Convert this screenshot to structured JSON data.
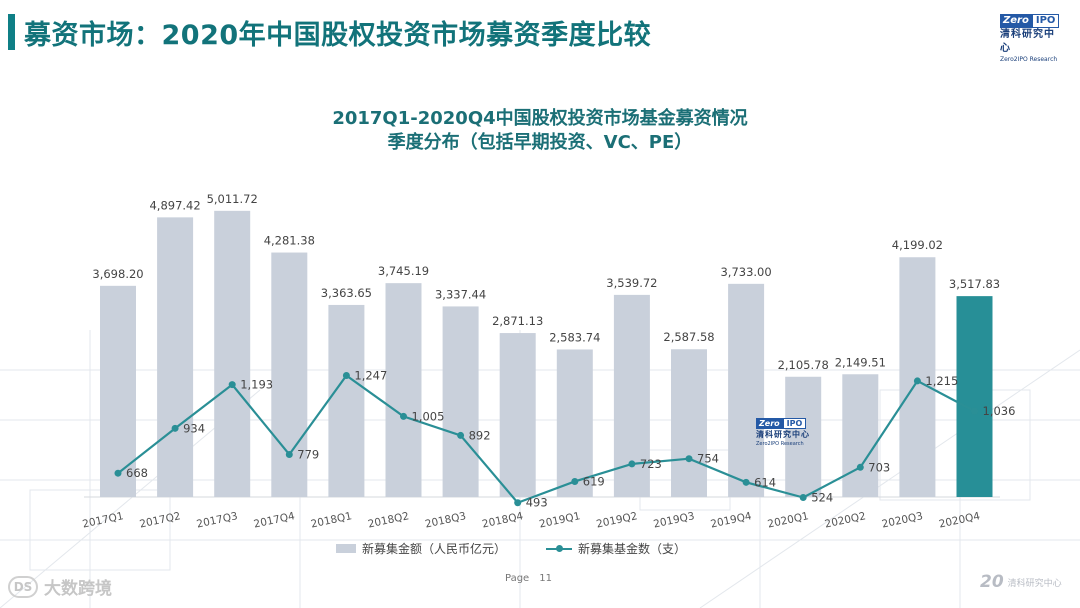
{
  "page": {
    "title": "募资市场：2020年中国股权投资市场募资季度比较",
    "number_label": "Page",
    "number": "11"
  },
  "logo": {
    "badge_left": "Zero",
    "badge_right": "IPO",
    "name_cn": "清科研究中心",
    "name_en": "Zero2IPO Research"
  },
  "footer": {
    "brand": "大数跨境",
    "brand_mark": "DS",
    "logo_num": "20",
    "logo_text": "清科研究中心"
  },
  "colors": {
    "bar": "#c9d0db",
    "bar_highlight": "#278f97",
    "line": "#2a8f96",
    "title": "#12737a"
  },
  "chart_data": {
    "type": "bar",
    "title_line1": "2017Q1-2020Q4中国股权投资市场基金募资情况",
    "title_line2": "季度分布（包括早期投资、VC、PE）",
    "categories": [
      "2017Q1",
      "2017Q2",
      "2017Q3",
      "2017Q4",
      "2018Q1",
      "2018Q2",
      "2018Q3",
      "2018Q4",
      "2019Q1",
      "2019Q2",
      "2019Q3",
      "2019Q4",
      "2020Q1",
      "2020Q2",
      "2020Q3",
      "2020Q4"
    ],
    "series": [
      {
        "name": "新募集金额（人民币亿元）",
        "type": "bar",
        "values": [
          3698.2,
          4897.42,
          5011.72,
          4281.38,
          3363.65,
          3745.19,
          3337.44,
          2871.13,
          2583.74,
          3539.72,
          2587.58,
          3733.0,
          2105.78,
          2149.51,
          4199.02,
          3517.83
        ],
        "labels": [
          "3,698.20",
          "4,897.42",
          "5,011.72",
          "4,281.38",
          "3,363.65",
          "3,745.19",
          "3,337.44",
          "2,871.13",
          "2,583.74",
          "3,539.72",
          "2,587.58",
          "3,733.00",
          "2,105.78",
          "2,149.51",
          "4,199.02",
          "3,517.83"
        ]
      },
      {
        "name": "新募集基金数（支）",
        "type": "line",
        "values": [
          668,
          934,
          1193,
          779,
          1247,
          1005,
          892,
          493,
          619,
          723,
          754,
          614,
          524,
          703,
          1215,
          1036
        ],
        "labels": [
          "668",
          "934",
          "1,193",
          "779",
          "1,247",
          "1,005",
          "892",
          "493",
          "619",
          "723",
          "754",
          "614",
          "524",
          "703",
          "1,215",
          "1,036"
        ]
      }
    ],
    "highlight_index": 15,
    "legend": [
      "新募集金额（人民币亿元）",
      "新募集基金数（支）"
    ],
    "legend_position": "bottom",
    "grid": false,
    "y_axes_visible": false
  }
}
